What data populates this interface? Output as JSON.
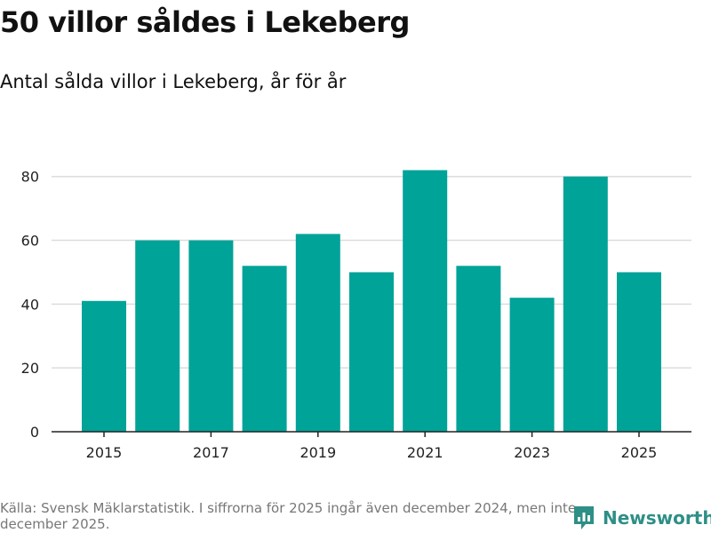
{
  "title": "50 villor såldes i Lekeberg",
  "subtitle": "Antal sålda villor i Lekeberg, år för år",
  "colors": {
    "bar": "#00a398",
    "grid": "#dddddd",
    "axis": "#222222",
    "brand": "#2e8f86"
  },
  "chart_data": {
    "type": "bar",
    "categories": [
      "2015",
      "2016",
      "2017",
      "2018",
      "2019",
      "2020",
      "2021",
      "2022",
      "2023",
      "2024",
      "2025"
    ],
    "values": [
      41,
      60,
      60,
      52,
      62,
      50,
      82,
      52,
      42,
      80,
      50
    ],
    "x_tick_labels": [
      "2015",
      "2017",
      "2019",
      "2021",
      "2023",
      "2025"
    ],
    "y_ticks": [
      0,
      20,
      40,
      60,
      80
    ],
    "ylim": [
      0,
      88
    ],
    "grid": true,
    "xlabel": "",
    "ylabel": ""
  },
  "footer": {
    "source": "Källa: Svensk Mäklarstatistik. I siffrorna för 2025 ingår även december 2024, men inte december 2025.",
    "brand": "Newsworthy",
    "brand_icon": "newsworthy-logo-icon"
  }
}
